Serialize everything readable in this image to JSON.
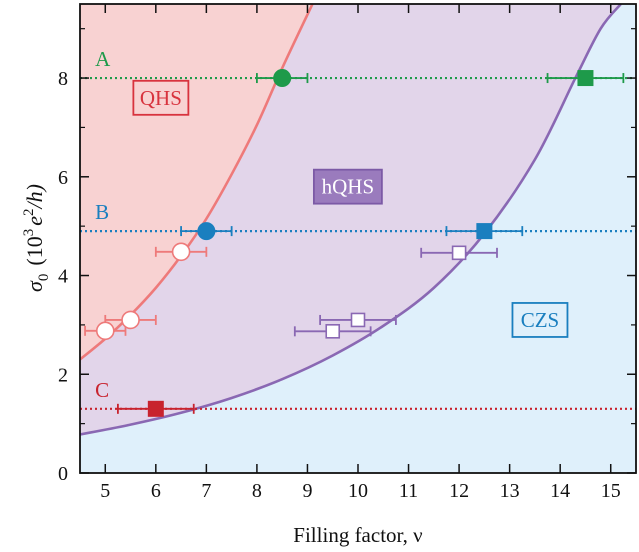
{
  "chart_data": {
    "type": "scatter",
    "title": "",
    "xlabel": "Filling factor, ν",
    "ylabel_main": "σ",
    "ylabel_sub": "0",
    "ylabel_paren_open": "(10",
    "ylabel_sup": "3",
    "ylabel_rest": "e",
    "ylabel_sup2": "2",
    "ylabel_close": "/h)",
    "xlim": [
      4.5,
      15.5
    ],
    "ylim": [
      0,
      9.5
    ],
    "x_ticks": [
      5,
      6,
      7,
      8,
      9,
      10,
      11,
      12,
      13,
      14,
      15
    ],
    "y_ticks": [
      0,
      2,
      4,
      6,
      8
    ],
    "grid": false,
    "regions": [
      {
        "name": "QHS",
        "label": "QHS",
        "color": "#f8d2d2",
        "border": "#d8333e",
        "text_color": "#d8333e",
        "label_x": 6.1,
        "label_y": 7.6
      },
      {
        "name": "hQHS",
        "label": "hQHS",
        "color": "#e2d5ea",
        "border": "#7c5aa6",
        "text_color": "#ffffff",
        "label_fill": "#9a7bbd",
        "label_x": 9.8,
        "label_y": 5.8
      },
      {
        "name": "CZS",
        "label": "CZS",
        "color": "#dff0fb",
        "border": "#1a7fbf",
        "text_color": "#1a7fbf",
        "label_x": 13.6,
        "label_y": 3.1
      }
    ],
    "boundaries": [
      {
        "name": "QHS/hQHS boundary",
        "color": "#ee7a7a",
        "x": [
          4.5,
          5,
          5.5,
          6,
          6.5,
          7,
          7.5,
          8,
          8.5,
          9.1
        ],
        "y": [
          2.3,
          2.72,
          3.2,
          3.75,
          4.4,
          5.15,
          6.05,
          7.05,
          8.2,
          9.5
        ]
      },
      {
        "name": "hQHS/CZS boundary",
        "color": "#8a68b3",
        "x": [
          4.5,
          5.5,
          6.5,
          7.5,
          8.5,
          9.5,
          10.5,
          11.5,
          12.5,
          13.5,
          14.3,
          14.8,
          15.2
        ],
        "y": [
          0.78,
          0.98,
          1.22,
          1.52,
          1.9,
          2.38,
          2.98,
          3.75,
          4.85,
          6.35,
          8.0,
          9.0,
          9.5
        ]
      }
    ],
    "reference_lines": [
      {
        "label": "A",
        "y": 8.0,
        "color": "#1e9a4a",
        "label_x": 4.8
      },
      {
        "label": "B",
        "y": 4.9,
        "color": "#1a7fbf",
        "label_x": 4.8
      },
      {
        "label": "C",
        "y": 1.3,
        "color": "#c8232e",
        "label_x": 4.8
      }
    ],
    "series": [
      {
        "shape": "circle",
        "filled": true,
        "color": "#1e9a4a",
        "points": [
          {
            "x": 8.5,
            "y": 8.0,
            "xerr": 0.5
          }
        ]
      },
      {
        "shape": "square",
        "filled": true,
        "color": "#1e9a4a",
        "points": [
          {
            "x": 14.5,
            "y": 8.0,
            "xerr": 0.75
          }
        ]
      },
      {
        "shape": "circle",
        "filled": true,
        "color": "#1a7fbf",
        "points": [
          {
            "x": 7.0,
            "y": 4.9,
            "xerr": 0.5
          }
        ]
      },
      {
        "shape": "square",
        "filled": true,
        "color": "#1a7fbf",
        "points": [
          {
            "x": 12.5,
            "y": 4.9,
            "xerr": 0.75
          }
        ]
      },
      {
        "shape": "square",
        "filled": true,
        "color": "#c8232e",
        "points": [
          {
            "x": 6.0,
            "y": 1.3,
            "xerr": 0.75
          }
        ]
      },
      {
        "shape": "circle",
        "filled": false,
        "color": "#ee7a7a",
        "points": [
          {
            "x": 5.0,
            "y": 2.88,
            "xerr": 0.4
          },
          {
            "x": 5.5,
            "y": 3.1,
            "xerr": 0.5
          },
          {
            "x": 6.5,
            "y": 4.48,
            "xerr": 0.5
          }
        ]
      },
      {
        "shape": "square",
        "filled": false,
        "color": "#8a68b3",
        "points": [
          {
            "x": 9.5,
            "y": 2.87,
            "xerr": 0.75
          },
          {
            "x": 10.0,
            "y": 3.1,
            "xerr": 0.75
          },
          {
            "x": 12.0,
            "y": 4.46,
            "xerr": 0.75
          }
        ]
      }
    ]
  }
}
